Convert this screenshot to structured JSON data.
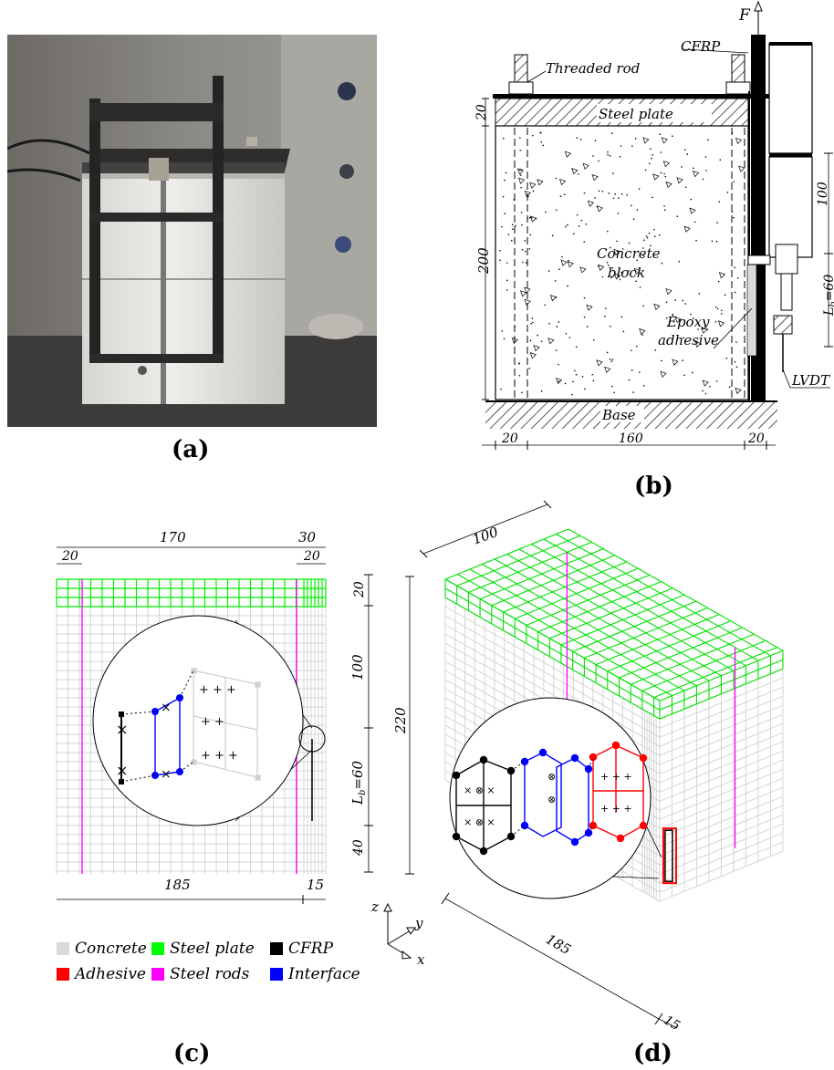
{
  "panels": {
    "a": {
      "caption": "(a)"
    },
    "b": {
      "caption": "(b)",
      "labels": {
        "force": "F",
        "cfrp": "CFRP",
        "threaded_rod": "Threaded rod",
        "steel_plate": "Steel plate",
        "concrete_block_line1": "Concrete",
        "concrete_block_line2": "block",
        "epoxy_line1": "Epoxy",
        "epoxy_line2": "adhesive",
        "lvdt": "LVDT",
        "base": "Base"
      },
      "dims": {
        "plate_thickness": "20",
        "block_height": "200",
        "left_edge": "20",
        "center_width": "160",
        "right_edge": "20",
        "top_free": "100",
        "bond_length_prefix": "L",
        "bond_length_sub": "b",
        "bond_length_value": "=60"
      }
    },
    "c": {
      "caption": "(c)",
      "dims": {
        "top_total": "170",
        "top_right": "30",
        "top_left_small": "20",
        "top_right_small": "20",
        "bottom_total": "185",
        "bottom_right": "15",
        "v_plate": "20",
        "v_top": "100",
        "v_bond_prefix": "L",
        "v_bond_sub": "b",
        "v_bond_value": "=60",
        "v_bottom": "40"
      }
    },
    "d": {
      "caption": "(d)",
      "dims": {
        "width": "100",
        "height": "220",
        "length": "185",
        "depth": "15"
      },
      "axes": {
        "z": "z",
        "y": "y",
        "x": "x"
      }
    }
  },
  "legend": [
    {
      "label": "Concrete",
      "color": "#d9d9d9"
    },
    {
      "label": "Steel plate",
      "color": "#00ff00"
    },
    {
      "label": "CFRP",
      "color": "#000000"
    },
    {
      "label": "Adhesive",
      "color": "#ff0000"
    },
    {
      "label": "Steel rods",
      "color": "#ff00ff"
    },
    {
      "label": "Interface",
      "color": "#0000ff"
    }
  ]
}
